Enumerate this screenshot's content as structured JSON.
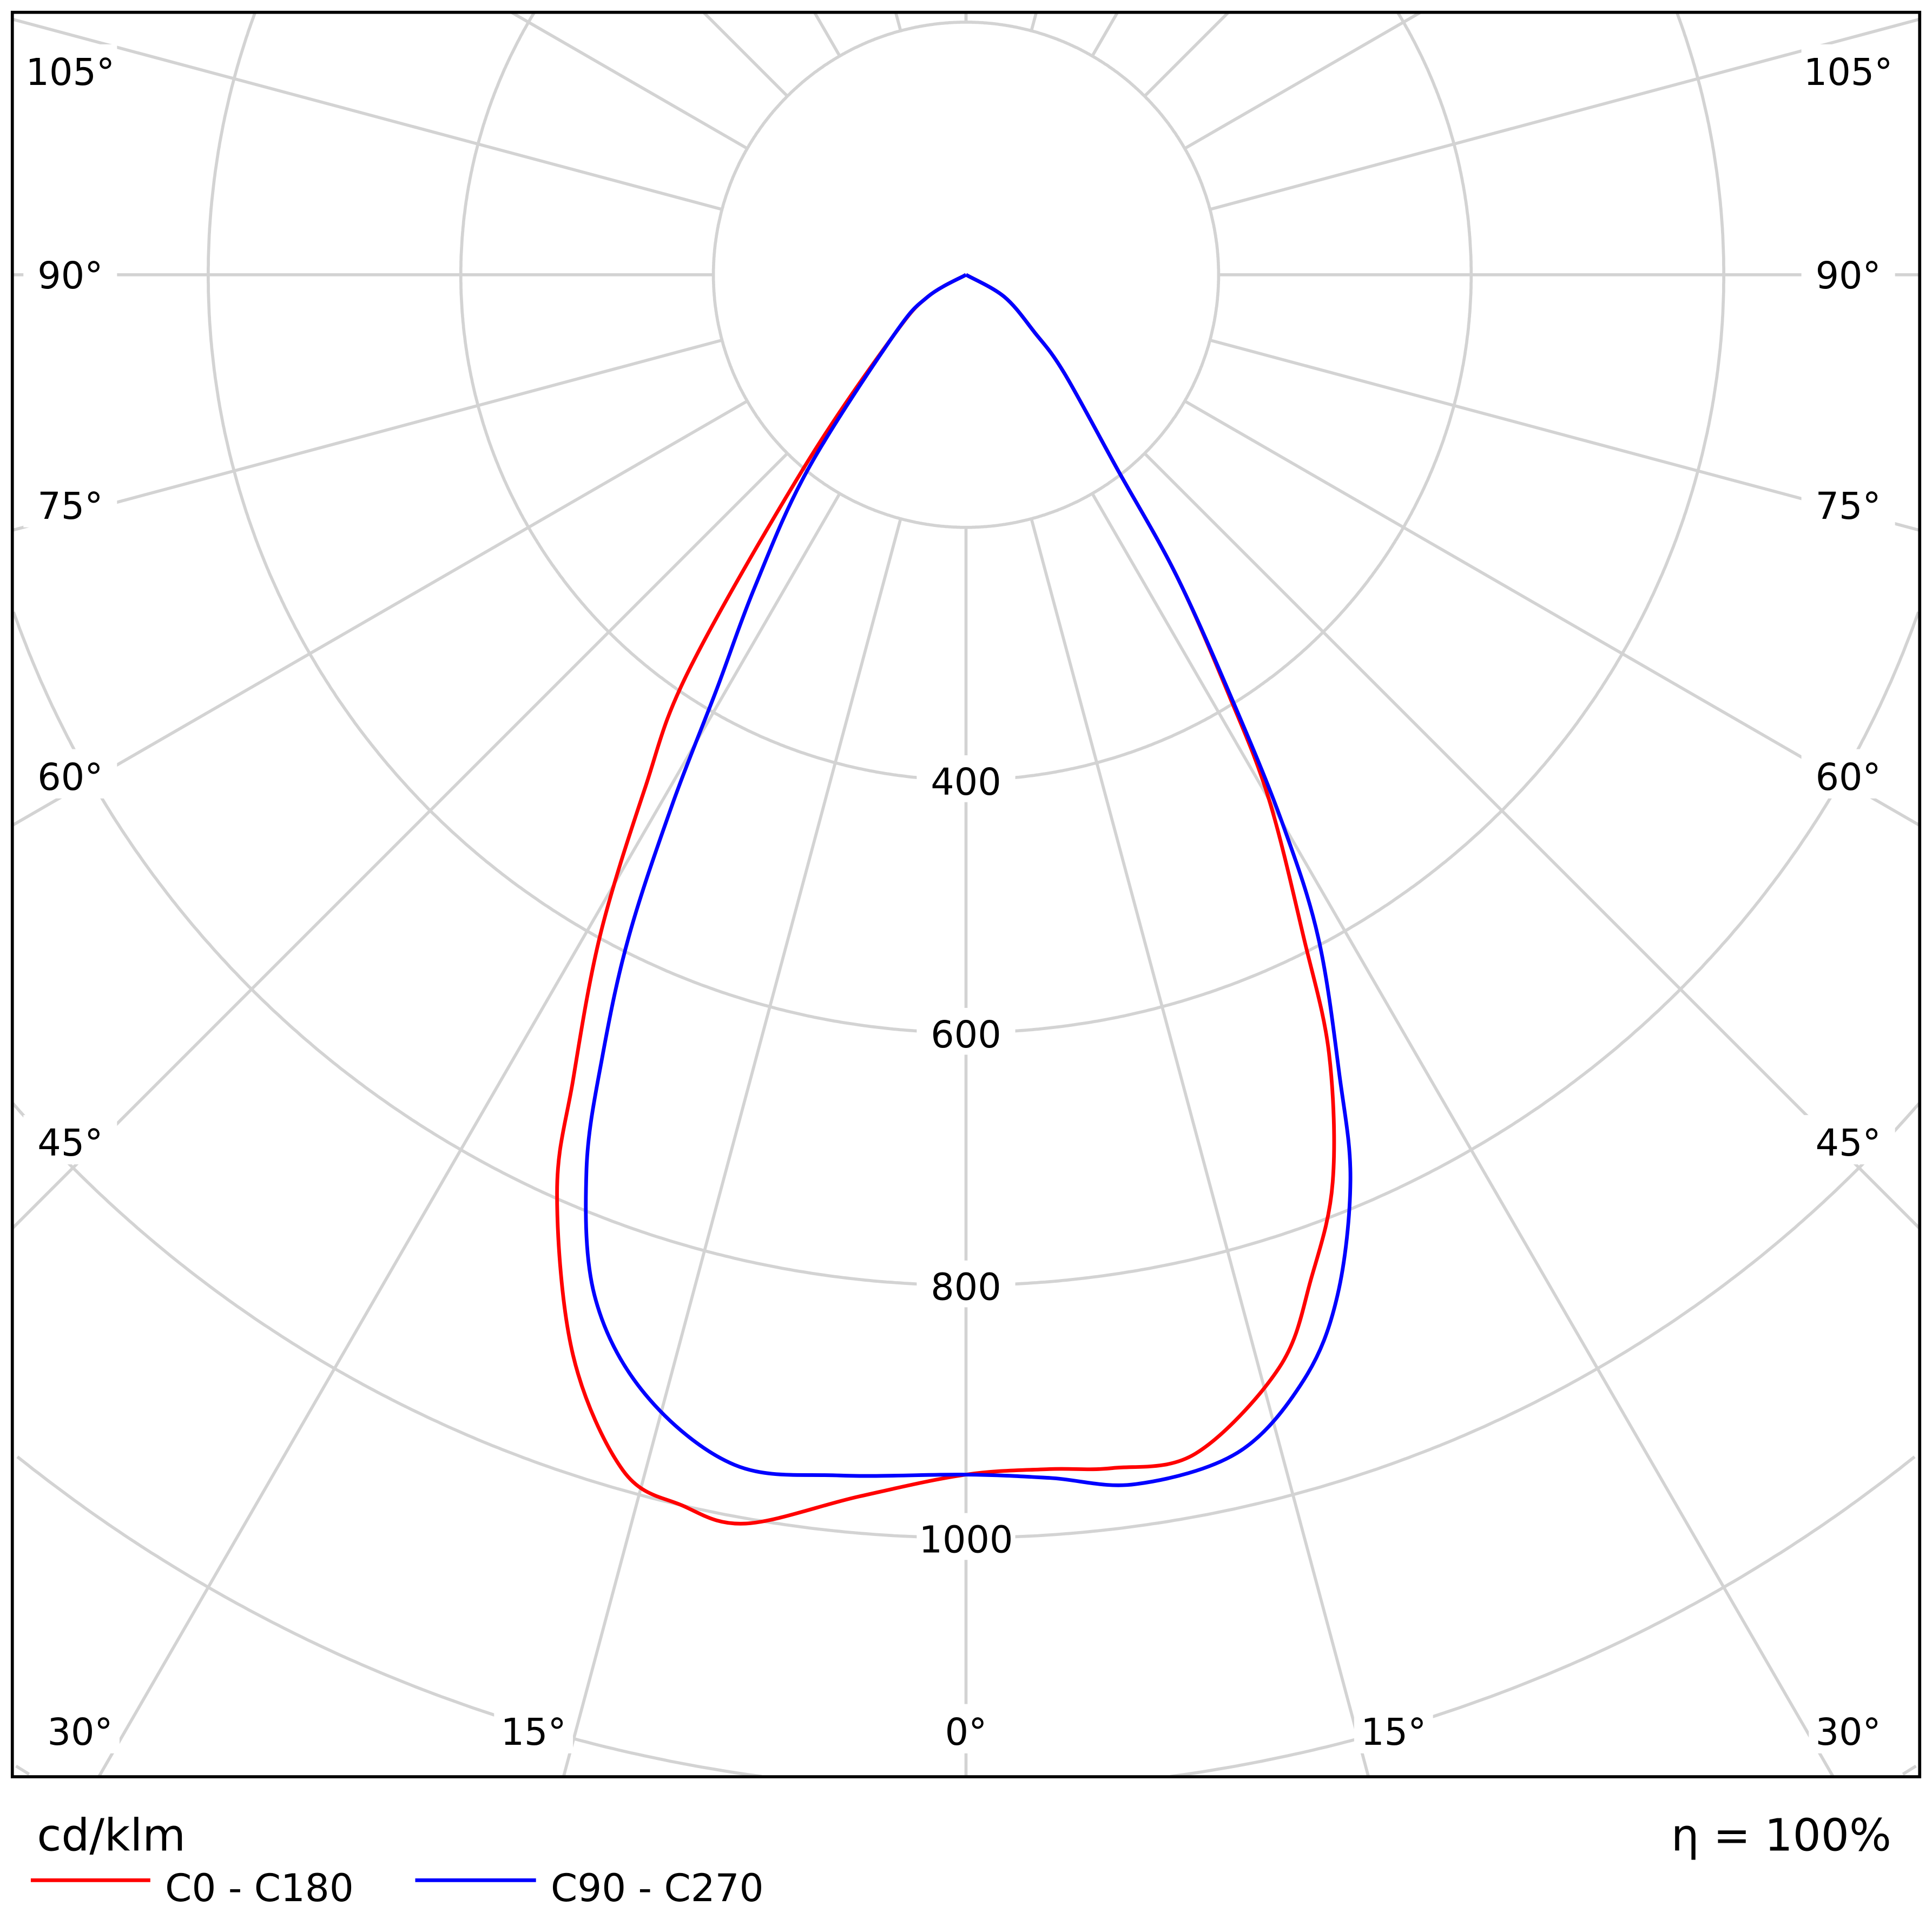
{
  "chart_data": {
    "type": "polar-line",
    "title": "",
    "unit_label": "cd/klm",
    "efficiency_label": "η = 100%",
    "radial_axis": {
      "ticks": [
        200,
        400,
        600,
        800,
        1000,
        1200,
        1400
      ],
      "labeled_ticks": [
        "400",
        "600",
        "800",
        "1000"
      ],
      "max": 1400
    },
    "angle_labels_side": [
      "105°",
      "90°",
      "75°",
      "60°",
      "45°"
    ],
    "angle_labels_side_values": [
      105,
      90,
      75,
      60,
      45
    ],
    "angle_labels_bottom": [
      "30°",
      "15°",
      "0°",
      "15°",
      "30°"
    ],
    "angle_labels_bottom_values": [
      -30,
      -15,
      0,
      15,
      30
    ],
    "grid": true,
    "legend_position": "bottom-left",
    "series": [
      {
        "name": "C0 - C180",
        "color": "#ff0000",
        "points": [
          [
            -90,
            0
          ],
          [
            -60,
            35
          ],
          [
            -50,
            75
          ],
          [
            -40,
            200
          ],
          [
            -35,
            383
          ],
          [
            -32,
            480
          ],
          [
            -29,
            597
          ],
          [
            -26,
            710
          ],
          [
            -24,
            796
          ],
          [
            -20,
            910
          ],
          [
            -16,
            985
          ],
          [
            -13,
            1000
          ],
          [
            -10,
            1004
          ],
          [
            -5,
            971
          ],
          [
            0,
            950
          ],
          [
            4,
            948
          ],
          [
            7,
            952
          ],
          [
            11,
            951
          ],
          [
            16,
            900
          ],
          [
            19,
            840
          ],
          [
            22,
            775
          ],
          [
            25,
            680
          ],
          [
            27,
            589
          ],
          [
            30,
            480
          ],
          [
            32,
            394
          ],
          [
            35,
            290
          ],
          [
            38,
            193
          ],
          [
            45,
            110
          ],
          [
            50,
            71
          ],
          [
            60,
            35
          ],
          [
            90,
            0
          ]
        ]
      },
      {
        "name": "C90 - C270",
        "color": "#0000ff",
        "points": [
          [
            -90,
            0
          ],
          [
            -60,
            35
          ],
          [
            -50,
            75
          ],
          [
            -39,
            200
          ],
          [
            -34,
            300
          ],
          [
            -31,
            384
          ],
          [
            -29,
            480
          ],
          [
            -27,
            588
          ],
          [
            -25,
            680
          ],
          [
            -23,
            769
          ],
          [
            -20,
            860
          ],
          [
            -16,
            922
          ],
          [
            -11,
            960
          ],
          [
            -6,
            956
          ],
          [
            0,
            950
          ],
          [
            4,
            955
          ],
          [
            8,
            967
          ],
          [
            13,
            957
          ],
          [
            17,
            915
          ],
          [
            20,
            860
          ],
          [
            23,
            779
          ],
          [
            25,
            700
          ],
          [
            28,
            594
          ],
          [
            30,
            500
          ],
          [
            32,
            400
          ],
          [
            35,
            290
          ],
          [
            38,
            193
          ],
          [
            45,
            110
          ],
          [
            50,
            71
          ],
          [
            60,
            35
          ],
          [
            90,
            0
          ]
        ]
      }
    ]
  }
}
